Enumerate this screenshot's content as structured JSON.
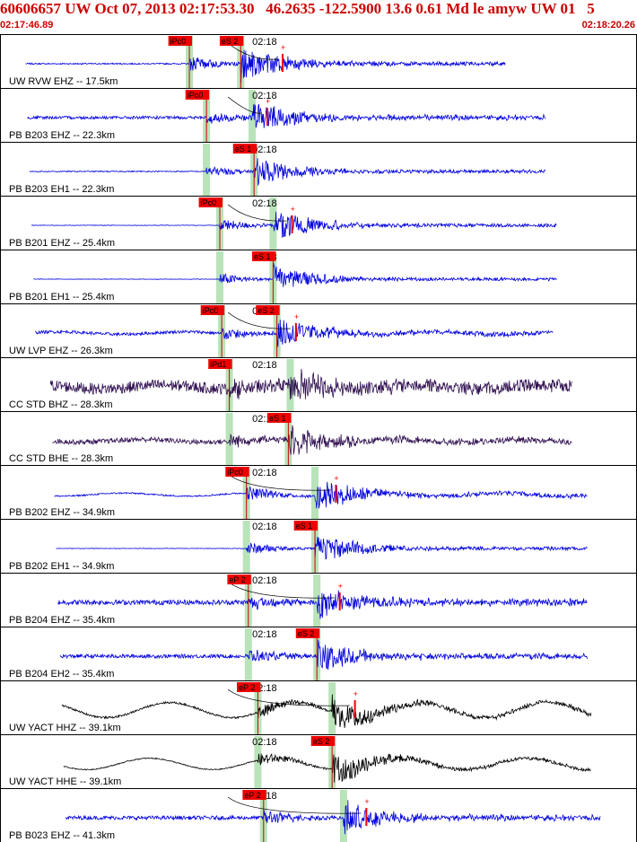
{
  "header": {
    "title": "60606657 UW Oct 07, 2013 02:17:53.30   46.2635 -122.5900 13.6 0.61 Md le amyw UW 01   5",
    "start_time": "02:17:46.89",
    "end_time": "02:18:20.26"
  },
  "minute_label": "02:18",
  "colors": {
    "header_text": "#cc0000",
    "pick_box": "#ee0000",
    "pick_window": "#b9e3b9",
    "trace_blue": "#0000dd",
    "trace_purple": "#301050",
    "trace_black": "#000000",
    "row_border": "#000000"
  },
  "channels": [
    {
      "label": "UW RVW EHZ -- 17.5km",
      "color": "blue",
      "p_pick": "iPc0",
      "s_pick": "eS 2",
      "p_time": 9.9,
      "s_time": 12.6,
      "amp_time": 14.8,
      "end_time": 26.5,
      "noise": 0.05,
      "wave": 0,
      "amp": 1.0
    },
    {
      "label": "PB B203 EHZ -- 22.3km",
      "color": "blue",
      "p_pick": "iPc0",
      "s_pick": "",
      "p_time": 10.8,
      "s_time": 13.2,
      "amp_time": 14.0,
      "end_time": 28.6,
      "noise": 0.12,
      "wave": 0,
      "amp": 0.9
    },
    {
      "label": "PB B203 EH1 -- 22.3km",
      "color": "blue",
      "p_pick": "",
      "s_pick": "eS 1",
      "p_time": 10.8,
      "s_time": 13.3,
      "amp_time": 0,
      "end_time": 28.6,
      "noise": 0.04,
      "wave": 0,
      "amp": 0.8
    },
    {
      "label": "PB B201 EHZ -- 25.4km",
      "color": "blue",
      "p_pick": "iPc0",
      "s_pick": "",
      "p_time": 11.5,
      "s_time": 14.3,
      "amp_time": 15.3,
      "end_time": 29.2,
      "noise": 0.02,
      "wave": 0,
      "amp": 0.9
    },
    {
      "label": "PB B201 EH1 -- 25.4km",
      "color": "blue",
      "p_pick": "",
      "s_pick": "eS 1",
      "p_time": 11.5,
      "s_time": 14.3,
      "amp_time": 0,
      "end_time": 29.2,
      "noise": 0.02,
      "wave": 0,
      "amp": 0.8
    },
    {
      "label": "UW LVP EHZ -- 26.3km",
      "color": "blue",
      "p_pick": "iPc0",
      "s_pick": "eS 2",
      "p_time": 11.6,
      "s_time": 14.5,
      "amp_time": 15.5,
      "end_time": 29.0,
      "noise": 0.12,
      "wave": 0.1,
      "amp": 0.9
    },
    {
      "label": "CC STD BHZ -- 28.3km",
      "color": "purple",
      "p_pick": "iPd1",
      "s_pick": "",
      "p_time": 12.0,
      "s_time": 15.2,
      "amp_time": 0,
      "end_time": 30.0,
      "noise": 0.45,
      "wave": 0.15,
      "amp": 1.0
    },
    {
      "label": "CC STD BHE -- 28.3km",
      "color": "purple",
      "p_pick": "",
      "s_pick": "eS 1",
      "p_time": 12.0,
      "s_time": 15.1,
      "amp_time": 0,
      "end_time": 30.0,
      "noise": 0.2,
      "wave": 0.1,
      "amp": 0.9
    },
    {
      "label": "PB B202 EHZ -- 34.9km",
      "color": "blue",
      "p_pick": "iPc0",
      "s_pick": "",
      "p_time": 12.9,
      "s_time": 16.5,
      "amp_time": 17.6,
      "end_time": 30.8,
      "noise": 0.06,
      "wave": 0.12,
      "amp": 1.0
    },
    {
      "label": "PB B202 EH1 -- 34.9km",
      "color": "blue",
      "p_pick": "",
      "s_pick": "eS 1",
      "p_time": 12.9,
      "s_time": 16.5,
      "amp_time": 0,
      "end_time": 30.8,
      "noise": 0.02,
      "wave": 0,
      "amp": 0.9
    },
    {
      "label": "PB B204 EHZ -- 35.4km",
      "color": "blue",
      "p_pick": "eP 2",
      "s_pick": "",
      "p_time": 13.0,
      "s_time": 16.6,
      "amp_time": 17.8,
      "end_time": 30.8,
      "noise": 0.2,
      "wave": 0,
      "amp": 1.0
    },
    {
      "label": "PB B204 EH2 -- 35.4km",
      "color": "blue",
      "p_pick": "",
      "s_pick": "eS 2",
      "p_time": 13.0,
      "s_time": 16.6,
      "amp_time": 0,
      "end_time": 30.8,
      "noise": 0.15,
      "wave": 0,
      "amp": 0.9
    },
    {
      "label": "UW YACT HHZ -- 39.1km",
      "color": "black",
      "p_pick": "eP 2",
      "s_pick": "",
      "p_time": 13.5,
      "s_time": 17.4,
      "amp_time": 18.6,
      "end_time": 31.0,
      "noise": 0.08,
      "wave": 0.6,
      "amp": 1.0
    },
    {
      "label": "UW YACT HHE -- 39.1km",
      "color": "black",
      "p_pick": "",
      "s_pick": "eS 2",
      "p_time": 13.5,
      "s_time": 17.4,
      "amp_time": 0,
      "end_time": 31.0,
      "noise": 0.04,
      "wave": 0.45,
      "amp": 0.9
    },
    {
      "label": "PB B023 EHZ -- 41.3km",
      "color": "blue",
      "p_pick": "eP 2",
      "s_pick": "",
      "p_time": 13.8,
      "s_time": 18.0,
      "amp_time": 19.2,
      "end_time": 31.5,
      "noise": 0.15,
      "wave": 0,
      "amp": 1.0
    }
  ]
}
